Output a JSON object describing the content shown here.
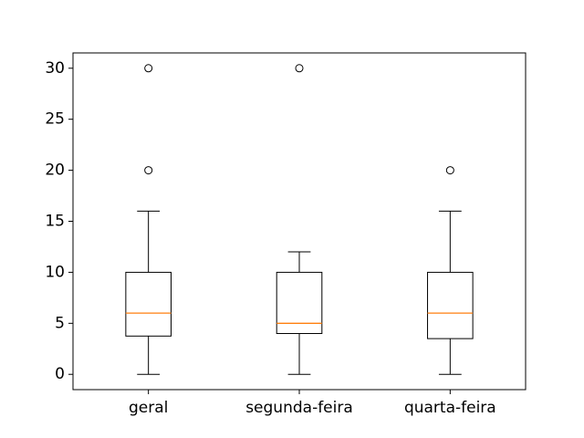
{
  "chart_data": {
    "type": "box",
    "categories": [
      "geral",
      "segunda-feira",
      "quarta-feira"
    ],
    "ylim": [
      -1.5,
      31.5
    ],
    "yticks": [
      0,
      5,
      10,
      15,
      20,
      25,
      30
    ],
    "boxes": [
      {
        "label": "geral",
        "whisker_low": 0,
        "q1": 3.75,
        "median": 6,
        "q3": 10,
        "whisker_high": 16,
        "outliers": [
          20,
          30
        ]
      },
      {
        "label": "segunda-feira",
        "whisker_low": 0,
        "q1": 4,
        "median": 5,
        "q3": 10,
        "whisker_high": 12,
        "outliers": [
          30
        ]
      },
      {
        "label": "quarta-feira",
        "whisker_low": 0,
        "q1": 3.5,
        "median": 6,
        "q3": 10,
        "whisker_high": 16,
        "outliers": [
          20
        ]
      }
    ],
    "colors": {
      "box": "#000000",
      "median": "#ff7f0e",
      "outlier": "#000000"
    },
    "grid": false,
    "title": "",
    "xlabel": "",
    "ylabel": ""
  }
}
